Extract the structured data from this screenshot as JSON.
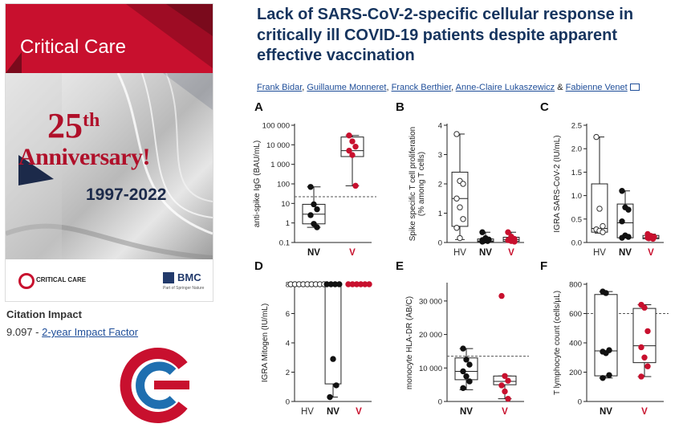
{
  "journal": {
    "cover_title": "Critical Care",
    "cover_number": "25",
    "cover_suffix": "th",
    "cover_anniversary": "Anniversary!",
    "cover_years": "1997-2022",
    "footer_brand": "CRITICAL CARE",
    "publisher": "BMC",
    "publisher_sub": "Part of Springer Nature"
  },
  "citation": {
    "heading": "Citation Impact",
    "value": "9.097",
    "separator": " - ",
    "link_label": "2-year Impact Factor"
  },
  "article": {
    "title": "Lack of SARS-CoV-2-specific cellular response in critically ill COVID-19 patients despite apparent effective vaccination",
    "authors": [
      "Frank Bidar",
      "Guillaume Monneret",
      "Franck Berthier",
      "Anne-Claire Lukaszewicz",
      "Fabienne Venet"
    ],
    "sep": ", ",
    "amp": " & "
  },
  "chart_data": [
    {
      "type": "scatter",
      "panel": "A",
      "ylabel": "anti-spike IgG (BAU/mL)",
      "scale": "log",
      "ylim": [
        0.1,
        100000
      ],
      "ticks": [
        "0.1",
        "1",
        "10",
        "100",
        "1 000",
        "10 000",
        "100 000"
      ],
      "tick_values": [
        0.1,
        1,
        10,
        100,
        1000,
        10000,
        100000
      ],
      "categories": [
        "NV",
        "V"
      ],
      "category_colors": [
        "#111111",
        "#c8102e"
      ],
      "threshold": 22,
      "groups": [
        {
          "name": "NV",
          "color": "#111111",
          "filled": true,
          "values": [
            70,
            9,
            5,
            2.5,
            0.9,
            0.6
          ],
          "box": [
            0.6,
            0.9,
            2.8,
            9,
            70
          ]
        },
        {
          "name": "V",
          "color": "#c8102e",
          "filled": true,
          "values": [
            30000,
            15000,
            8000,
            5000,
            3000,
            80
          ],
          "box": [
            80,
            2500,
            5000,
            25000,
            30000
          ]
        }
      ]
    },
    {
      "type": "scatter",
      "panel": "B",
      "ylabel": "Spike specific T cell proliferation (% among T cells)",
      "scale": "linear",
      "ylim": [
        0,
        4
      ],
      "ticks": [
        "0",
        "1",
        "2",
        "3",
        "4"
      ],
      "tick_values": [
        0,
        1,
        2,
        3,
        4
      ],
      "categories": [
        "HV",
        "NV",
        "V"
      ],
      "category_colors": [
        "#333333",
        "#111111",
        "#c8102e"
      ],
      "groups": [
        {
          "name": "HV",
          "color": "#333333",
          "filled": false,
          "values": [
            3.7,
            2.1,
            2.0,
            1.5,
            1.2,
            0.8,
            0.5,
            0.15
          ],
          "box": [
            0.1,
            0.55,
            1.5,
            2.4,
            3.7
          ]
        },
        {
          "name": "NV",
          "color": "#111111",
          "filled": true,
          "values": [
            0.35,
            0.15,
            0.1,
            0.08,
            0.05,
            0.05,
            0.03
          ],
          "box": [
            0.02,
            0.03,
            0.05,
            0.12,
            0.35
          ]
        },
        {
          "name": "V",
          "color": "#c8102e",
          "filled": true,
          "values": [
            0.35,
            0.2,
            0.12,
            0.08,
            0.05,
            0.03
          ],
          "box": [
            0.02,
            0.04,
            0.1,
            0.18,
            0.35
          ]
        }
      ]
    },
    {
      "type": "scatter",
      "panel": "C",
      "ylabel": "IGRA SARS-CoV-2 (IU/mL)",
      "scale": "linear",
      "ylim": [
        0,
        2.5
      ],
      "ticks": [
        "0.0",
        "0.5",
        "1.0",
        "1.5",
        "2.0",
        "2.5"
      ],
      "tick_values": [
        0,
        0.5,
        1,
        1.5,
        2,
        2.5
      ],
      "categories": [
        "HV",
        "NV",
        "V"
      ],
      "category_colors": [
        "#333333",
        "#111111",
        "#c8102e"
      ],
      "groups": [
        {
          "name": "HV",
          "color": "#333333",
          "filled": false,
          "values": [
            2.25,
            0.72,
            0.35,
            0.28,
            0.25,
            0.22
          ],
          "box": [
            0.2,
            0.22,
            0.3,
            1.25,
            2.25
          ]
        },
        {
          "name": "NV",
          "color": "#111111",
          "filled": true,
          "values": [
            1.1,
            0.75,
            0.7,
            0.45,
            0.15,
            0.12,
            0.1
          ],
          "box": [
            0.1,
            0.1,
            0.42,
            0.82,
            1.1
          ]
        },
        {
          "name": "V",
          "color": "#c8102e",
          "filled": true,
          "values": [
            0.18,
            0.14,
            0.12,
            0.1,
            0.09,
            0.08
          ],
          "box": [
            0.06,
            0.08,
            0.1,
            0.15,
            0.18
          ]
        }
      ]
    },
    {
      "type": "scatter",
      "panel": "D",
      "ylabel": "IGRA Mitogen (IU/mL)",
      "scale": "linear",
      "ylim": [
        0,
        8
      ],
      "ticks": [
        "0",
        "2",
        "4",
        "6",
        "8"
      ],
      "tick_values": [
        0,
        2,
        4,
        6,
        8
      ],
      "categories": [
        "HV",
        "NV",
        "V"
      ],
      "category_colors": [
        "#333333",
        "#111111",
        "#c8102e"
      ],
      "groups": [
        {
          "name": "HV",
          "color": "#333333",
          "filled": false,
          "values": [
            8,
            8,
            8,
            8,
            8,
            8,
            8,
            8,
            8
          ],
          "box": [
            8,
            8,
            8,
            8,
            8
          ]
        },
        {
          "name": "NV",
          "color": "#111111",
          "filled": true,
          "values": [
            8,
            8,
            8,
            8,
            2.9,
            1.1,
            0.3
          ],
          "box": [
            0.3,
            1.2,
            8,
            8,
            8
          ]
        },
        {
          "name": "V",
          "color": "#c8102e",
          "filled": true,
          "values": [
            8,
            8,
            8,
            8,
            8,
            8
          ],
          "box": [
            8,
            8,
            8,
            8,
            8
          ]
        }
      ]
    },
    {
      "type": "scatter",
      "panel": "E",
      "ylabel": "monocyte HLA-DR (AB/C)",
      "scale": "linear",
      "ylim": [
        0,
        35000
      ],
      "ticks": [
        "0",
        "10 000",
        "20 000",
        "30 000"
      ],
      "tick_values": [
        0,
        10000,
        20000,
        30000
      ],
      "categories": [
        "NV",
        "V"
      ],
      "category_colors": [
        "#111111",
        "#c8102e"
      ],
      "threshold": 13500,
      "groups": [
        {
          "name": "NV",
          "color": "#111111",
          "filled": true,
          "values": [
            15800,
            12500,
            11000,
            9000,
            7500,
            6000,
            4000
          ],
          "box": [
            3500,
            6500,
            9000,
            13000,
            15800
          ]
        },
        {
          "name": "V",
          "color": "#c8102e",
          "filled": true,
          "values": [
            31500,
            7600,
            6200,
            4800,
            3000,
            800
          ],
          "box": [
            800,
            5000,
            6000,
            7600,
            7600
          ]
        }
      ]
    },
    {
      "type": "scatter",
      "panel": "F",
      "ylabel": "T lymphocyte count (cells/µL)",
      "scale": "linear",
      "ylim": [
        0,
        800
      ],
      "ticks": [
        "0",
        "200",
        "400",
        "600",
        "800"
      ],
      "tick_values": [
        0,
        200,
        400,
        600,
        800
      ],
      "categories": [
        "NV",
        "V"
      ],
      "category_colors": [
        "#111111",
        "#c8102e"
      ],
      "threshold": 600,
      "groups": [
        {
          "name": "NV",
          "color": "#111111",
          "filled": true,
          "values": [
            750,
            740,
            350,
            340,
            330,
            180,
            160
          ],
          "box": [
            160,
            175,
            345,
            730,
            750
          ]
        },
        {
          "name": "V",
          "color": "#c8102e",
          "filled": true,
          "values": [
            660,
            640,
            480,
            370,
            300,
            240,
            170
          ],
          "box": [
            170,
            265,
            380,
            635,
            660
          ]
        }
      ]
    }
  ]
}
